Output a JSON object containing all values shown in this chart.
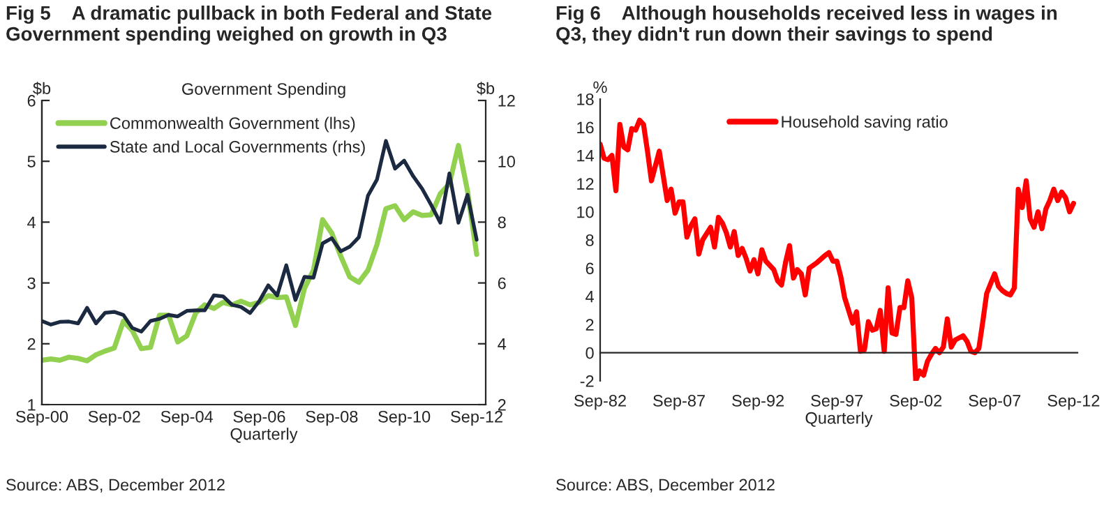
{
  "chart_data": [
    {
      "type": "line",
      "title": "Fig 5    A dramatic pullback in both Federal and State\nGovernment spending weighed on growth in Q3",
      "subtitle": "Government Spending",
      "xlabel": "Quarterly",
      "ylabel": "$b",
      "y2label": "$b",
      "annotations": [
        "Source: ABS, December 2012"
      ],
      "x": [
        "2000-09",
        "2000-12",
        "2001-03",
        "2001-06",
        "2001-09",
        "2001-12",
        "2002-03",
        "2002-06",
        "2002-09",
        "2002-12",
        "2003-03",
        "2003-06",
        "2003-09",
        "2003-12",
        "2004-03",
        "2004-06",
        "2004-09",
        "2004-12",
        "2005-03",
        "2005-06",
        "2005-09",
        "2005-12",
        "2006-03",
        "2006-06",
        "2006-09",
        "2006-12",
        "2007-03",
        "2007-06",
        "2007-09",
        "2007-12",
        "2008-03",
        "2008-06",
        "2008-09",
        "2008-12",
        "2009-03",
        "2009-06",
        "2009-09",
        "2009-12",
        "2010-03",
        "2010-06",
        "2010-09",
        "2010-12",
        "2011-03",
        "2011-06",
        "2011-09",
        "2011-12",
        "2012-03",
        "2012-06",
        "2012-09"
      ],
      "series": [
        {
          "name": "Commonwealth Government (lhs)",
          "color": "#92d050",
          "values": [
            1.73,
            1.75,
            1.73,
            1.78,
            1.76,
            1.72,
            1.82,
            1.88,
            1.93,
            2.37,
            2.22,
            1.92,
            1.94,
            2.47,
            2.47,
            2.03,
            2.13,
            2.51,
            2.64,
            2.58,
            2.68,
            2.64,
            2.7,
            2.64,
            2.68,
            2.79,
            2.76,
            2.77,
            2.3,
            2.91,
            3.21,
            4.04,
            3.82,
            3.44,
            3.1,
            3.01,
            3.21,
            3.63,
            4.22,
            4.27,
            4.04,
            4.17,
            4.11,
            4.12,
            4.47,
            4.63,
            5.26,
            4.51,
            3.47
          ]
        },
        {
          "name": "State and Local Governments (rhs)",
          "color": "#1b2a41",
          "axis": "y2",
          "values": [
            4.75,
            4.63,
            4.72,
            4.73,
            4.67,
            5.18,
            4.67,
            5.02,
            5.05,
            4.95,
            4.52,
            4.4,
            4.75,
            4.82,
            4.95,
            4.9,
            5.08,
            5.1,
            5.1,
            5.59,
            5.56,
            5.28,
            5.21,
            5.01,
            5.4,
            5.92,
            5.59,
            6.58,
            5.44,
            6.2,
            6.17,
            7.3,
            7.47,
            7.04,
            7.19,
            7.5,
            8.87,
            9.4,
            10.67,
            9.76,
            10.02,
            9.51,
            9.1,
            8.56,
            7.98,
            9.6,
            7.98,
            8.9,
            7.42
          ]
        }
      ],
      "xlim": [
        "2000-09",
        "2012-12"
      ],
      "xticks": [
        {
          "value": "2000-09",
          "label": "Sep-00"
        },
        {
          "value": "2002-09",
          "label": "Sep-02"
        },
        {
          "value": "2004-09",
          "label": "Sep-04"
        },
        {
          "value": "2006-09",
          "label": "Sep-06"
        },
        {
          "value": "2008-09",
          "label": "Sep-08"
        },
        {
          "value": "2010-09",
          "label": "Sep-10"
        },
        {
          "value": "2012-09",
          "label": "Sep-12"
        }
      ],
      "ylim": [
        1,
        6
      ],
      "yticks": [
        1,
        2,
        3,
        4,
        5,
        6
      ],
      "y2lim": [
        2,
        12
      ],
      "y2ticks": [
        2,
        4,
        6,
        8,
        10,
        12
      ],
      "legend": "top left",
      "grid": false,
      "marker": "none",
      "line_style": "solid"
    },
    {
      "type": "line",
      "title": "Fig 6    Although households received less in wages in\nQ3, they didn't run down their savings to spend",
      "xlabel": "Quarterly",
      "ylabel": "%",
      "annotations": [
        "Source: ABS, December 2012"
      ],
      "x": [
        "1982-09",
        "1982-12",
        "1983-03",
        "1983-06",
        "1983-09",
        "1983-12",
        "1984-03",
        "1984-06",
        "1984-09",
        "1984-12",
        "1985-03",
        "1985-06",
        "1985-09",
        "1985-12",
        "1986-06",
        "1986-12",
        "1987-03",
        "1987-06",
        "1987-09",
        "1987-12",
        "1988-03",
        "1988-06",
        "1988-09",
        "1988-12",
        "1989-03",
        "1989-09",
        "1989-12",
        "1990-03",
        "1990-06",
        "1990-09",
        "1990-12",
        "1991-03",
        "1991-06",
        "1991-09",
        "1991-12",
        "1992-03",
        "1992-06",
        "1992-09",
        "1992-12",
        "1993-03",
        "1993-09",
        "1993-12",
        "1994-03",
        "1994-06",
        "1994-09",
        "1994-12",
        "1995-03",
        "1995-06",
        "1995-09",
        "1995-12",
        "1996-06",
        "1996-12",
        "1997-03",
        "1997-06",
        "1997-09",
        "1997-12",
        "1998-03",
        "1998-09",
        "1998-12",
        "1999-03",
        "1999-06",
        "1999-09",
        "1999-12",
        "2000-03",
        "2000-06",
        "2000-09",
        "2000-12",
        "2001-03",
        "2001-06",
        "2001-09",
        "2001-12",
        "2002-03",
        "2002-06",
        "2002-09",
        "2002-12",
        "2003-03",
        "2003-06",
        "2003-09",
        "2003-12",
        "2004-03",
        "2004-06",
        "2004-09",
        "2004-12",
        "2005-03",
        "2005-09",
        "2005-12",
        "2006-03",
        "2006-06",
        "2006-09",
        "2006-12",
        "2007-03",
        "2007-06",
        "2007-09",
        "2007-12",
        "2008-03",
        "2008-06",
        "2008-09",
        "2008-12",
        "2009-03",
        "2009-06",
        "2009-09",
        "2009-12",
        "2010-03",
        "2010-06",
        "2010-09",
        "2010-12",
        "2011-03",
        "2011-06",
        "2011-09",
        "2011-12",
        "2012-03",
        "2012-06",
        "2012-09"
      ],
      "series": [
        {
          "name": "Household saving ratio",
          "color": "#ff0000",
          "values": [
            14.8,
            13.8,
            13.7,
            14.0,
            11.5,
            16.2,
            14.6,
            14.4,
            15.9,
            15.8,
            16.5,
            16.2,
            14.3,
            12.2,
            14.3,
            10.8,
            11.6,
            9.9,
            10.7,
            10.7,
            8.2,
            9.0,
            9.5,
            7.0,
            8.0,
            8.9,
            7.5,
            9.6,
            9.2,
            8.5,
            7.5,
            8.6,
            6.9,
            7.4,
            6.7,
            5.8,
            6.6,
            5.6,
            7.3,
            6.5,
            5.9,
            5.1,
            4.8,
            6.4,
            7.6,
            5.3,
            5.9,
            5.6,
            4.1,
            6.0,
            6.4,
            6.9,
            7.1,
            6.5,
            6.5,
            5.4,
            3.9,
            2.1,
            2.9,
            0.1,
            0.2,
            2.2,
            1.6,
            1.7,
            3.0,
            0.1,
            4.6,
            1.4,
            1.3,
            3.2,
            3.2,
            5.1,
            3.9,
            -2.0,
            -1.3,
            -1.6,
            -0.6,
            -0.1,
            0.3,
            0.0,
            0.4,
            2.4,
            0.4,
            0.9,
            1.2,
            0.8,
            0.1,
            0.0,
            0.3,
            2.2,
            4.2,
            4.9,
            5.6,
            4.7,
            4.4,
            4.2,
            4.1,
            4.6,
            11.6,
            10.3,
            12.2,
            9.5,
            8.9,
            10.0,
            8.8,
            10.2,
            10.8,
            11.6,
            10.8,
            11.4,
            11.0,
            10.0,
            10.6
          ]
        }
      ],
      "xlim": [
        "1982-09",
        "2012-12"
      ],
      "xticks": [
        {
          "value": "1982-09",
          "label": "Sep-82"
        },
        {
          "value": "1987-09",
          "label": "Sep-87"
        },
        {
          "value": "1992-09",
          "label": "Sep-92"
        },
        {
          "value": "1997-09",
          "label": "Sep-97"
        },
        {
          "value": "2002-09",
          "label": "Sep-02"
        },
        {
          "value": "2007-09",
          "label": "Sep-07"
        },
        {
          "value": "2012-09",
          "label": "Sep-12"
        }
      ],
      "ylim": [
        -2,
        18
      ],
      "yticks": [
        -2,
        0,
        2,
        4,
        6,
        8,
        10,
        12,
        14,
        16,
        18
      ],
      "legend": "top",
      "grid": false,
      "marker": "none",
      "line_style": "solid"
    }
  ]
}
